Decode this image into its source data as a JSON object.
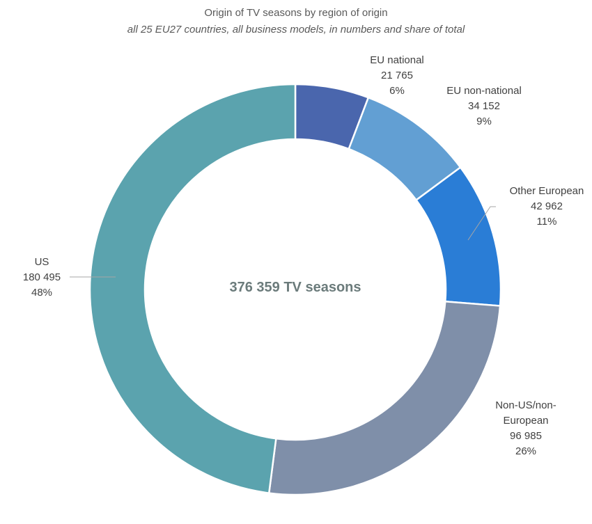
{
  "chart_data": {
    "type": "pie",
    "variant": "donut",
    "title": "Origin of TV seasons by region of origin",
    "subtitle": "all 25 EU27 countries, all business models, in numbers and share of total",
    "center_label": "376 359 TV seasons",
    "slices": [
      {
        "name": "EU national",
        "value": 21765,
        "value_label": "21 765",
        "share": "6%",
        "color": "#4a66ad"
      },
      {
        "name": "EU non-national",
        "value": 34152,
        "value_label": "34 152",
        "share": "9%",
        "color": "#629fd3"
      },
      {
        "name": "Other European",
        "value": 42962,
        "value_label": "42 962",
        "share": "11%",
        "color": "#2a7dd6"
      },
      {
        "name": "Non-US/non-European",
        "name_lines": [
          "Non-US/non-",
          "European"
        ],
        "value": 96985,
        "value_label": "96 985",
        "share": "26%",
        "color": "#7f8fa9"
      },
      {
        "name": "US",
        "value": 180495,
        "value_label": "180 495",
        "share": "48%",
        "color": "#5ba3ae"
      }
    ]
  }
}
